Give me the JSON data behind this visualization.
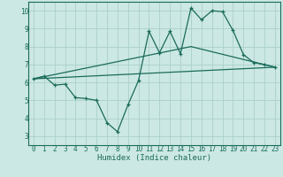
{
  "title": "",
  "xlabel": "Humidex (Indice chaleur)",
  "xlim": [
    -0.5,
    23.5
  ],
  "ylim": [
    2.5,
    10.5
  ],
  "yticks": [
    3,
    4,
    5,
    6,
    7,
    8,
    9,
    10
  ],
  "xticks": [
    0,
    1,
    2,
    3,
    4,
    5,
    6,
    7,
    8,
    9,
    10,
    11,
    12,
    13,
    14,
    15,
    16,
    17,
    18,
    19,
    20,
    21,
    22,
    23
  ],
  "bg_color": "#cce8e4",
  "grid_color": "#aacfca",
  "line_color": "#1a6b5a",
  "series1_x": [
    0,
    1,
    2,
    3,
    4,
    5,
    6,
    7,
    8,
    9,
    10,
    11,
    12,
    13,
    14,
    15,
    16,
    17,
    18,
    19,
    20,
    21,
    22,
    23
  ],
  "series1_y": [
    6.2,
    6.35,
    5.85,
    5.9,
    5.15,
    5.1,
    5.0,
    3.75,
    3.25,
    4.75,
    6.1,
    8.85,
    7.65,
    8.85,
    7.6,
    10.15,
    9.5,
    10.0,
    9.95,
    8.9,
    7.55,
    7.1,
    7.0,
    6.85
  ],
  "series2_x": [
    0,
    23
  ],
  "series2_y": [
    6.2,
    6.85
  ],
  "series3_x": [
    0,
    15,
    23
  ],
  "series3_y": [
    6.2,
    8.0,
    6.85
  ]
}
